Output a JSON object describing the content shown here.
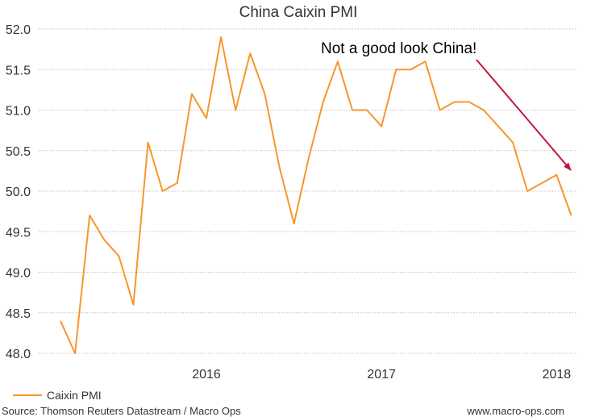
{
  "chart_data": {
    "type": "line",
    "title": "China Caixin PMI",
    "xlabel": "",
    "ylabel": "",
    "ylim": [
      48.0,
      52.0
    ],
    "yticks": [
      "48.0",
      "48.5",
      "49.0",
      "49.5",
      "50.0",
      "50.5",
      "51.0",
      "51.5",
      "52.0"
    ],
    "xticks": [
      "2016",
      "2017",
      "2018"
    ],
    "grid": "horizontal",
    "legend_position": "bottom-left",
    "series": [
      {
        "name": "Caixin PMI",
        "color": "#f7962c",
        "x": [
          "2015-08",
          "2015-09",
          "2015-10",
          "2015-11",
          "2015-12",
          "2016-01",
          "2016-02",
          "2016-03",
          "2016-04",
          "2016-05",
          "2016-06",
          "2016-07",
          "2016-08",
          "2016-09",
          "2016-10",
          "2016-11",
          "2016-12",
          "2017-01",
          "2017-02",
          "2017-03",
          "2017-04",
          "2017-05",
          "2017-06",
          "2017-07",
          "2017-08",
          "2017-09",
          "2017-10",
          "2017-11",
          "2017-12",
          "2018-01",
          "2018-02",
          "2018-03",
          "2018-04",
          "2018-05",
          "2018-06",
          "2018-07"
        ],
        "values": [
          48.4,
          48.0,
          49.7,
          49.4,
          49.2,
          48.6,
          50.6,
          50.0,
          50.1,
          51.2,
          50.9,
          51.9,
          51.0,
          51.7,
          51.2,
          50.3,
          49.6,
          50.4,
          51.1,
          51.6,
          51.0,
          51.0,
          50.8,
          51.5,
          51.5,
          51.6,
          51.0,
          51.1,
          51.1,
          51.0,
          50.8,
          50.6,
          50.0,
          50.1,
          50.2,
          49.7
        ]
      }
    ],
    "annotation": {
      "text": "Not a good look China!",
      "arrow_color": "#c0173a"
    },
    "source": "Source: Thomson Reuters Datastream / Macro Ops",
    "website": "www.macro-ops.com"
  }
}
